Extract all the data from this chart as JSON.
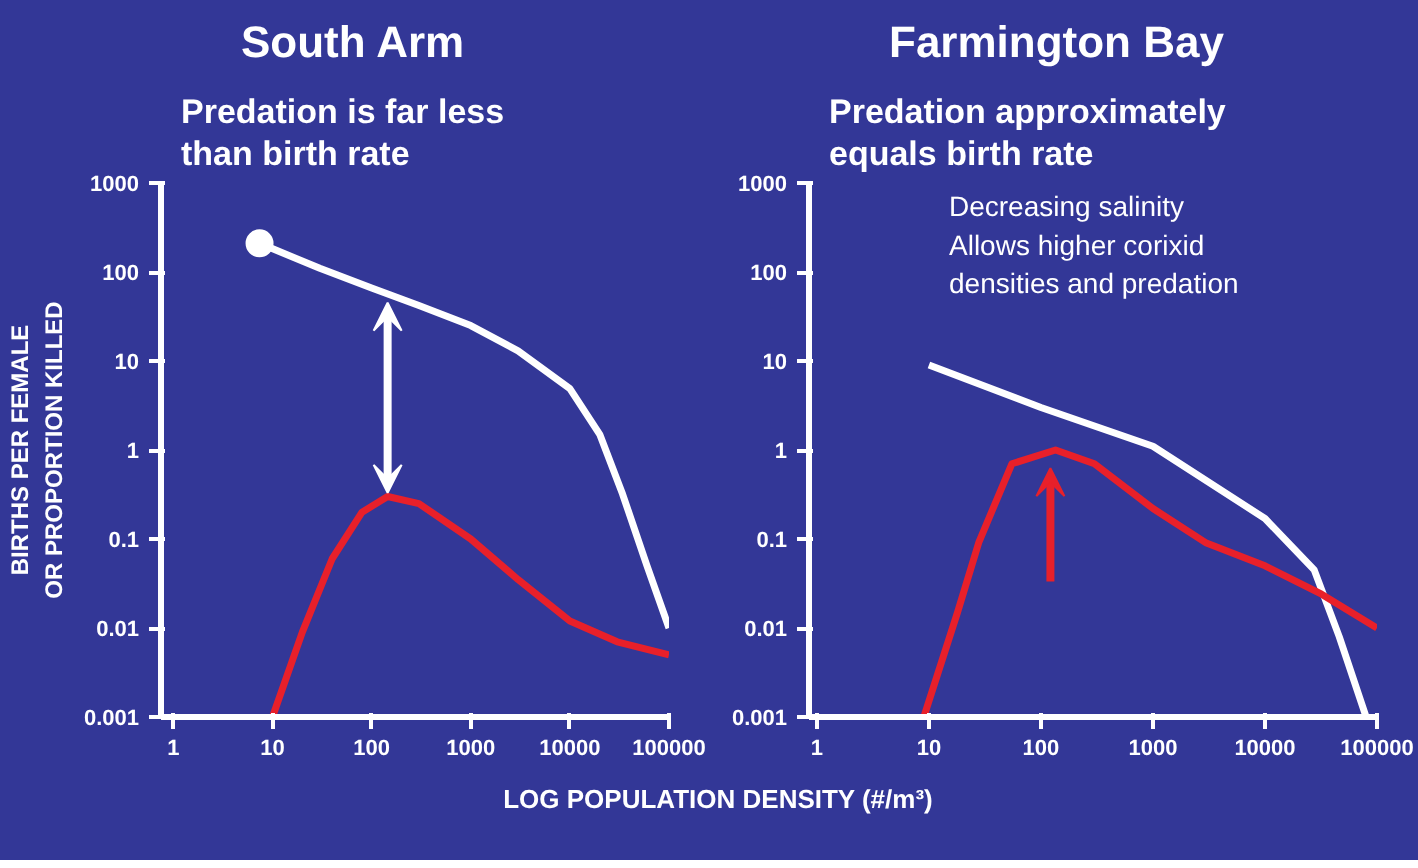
{
  "chart_data": [
    {
      "type": "line",
      "title": "South Arm",
      "subtitle": "Predation is far less than birth rate",
      "ylabel": "BIRTHS PER FEMALE\nOR PROPORTION KILLED",
      "xlabel": "LOG POPULATION DENSITY (#/m³)",
      "log": "xy",
      "xlim": [
        0.75,
        100000
      ],
      "ylim": [
        0.001,
        1000
      ],
      "xticks": [
        1,
        10,
        100,
        1000,
        10000,
        100000
      ],
      "yticks": [
        0.001,
        0.01,
        0.1,
        1,
        10,
        100,
        1000
      ],
      "grid": false,
      "line_style": "solid",
      "series": [
        {
          "color": "#ffffff",
          "x": [
            7.4,
            30,
            100,
            300,
            1000,
            3000,
            10000,
            20000,
            34000,
            60000,
            100000
          ],
          "values": [
            210,
            110,
            66,
            42,
            25,
            13,
            4.9,
            1.5,
            0.32,
            0.05,
            0.01
          ]
        },
        {
          "type": "scatter",
          "marker": "circle",
          "color": "#ffffff",
          "x": [
            7.4
          ],
          "values": [
            210
          ]
        },
        {
          "color": "#e8202a",
          "x": [
            10,
            20,
            40,
            80,
            145,
            300,
            1000,
            3000,
            10000,
            30000,
            100000
          ],
          "values": [
            0.001,
            0.009,
            0.06,
            0.2,
            0.3,
            0.25,
            0.1,
            0.035,
            0.012,
            0.007,
            0.005
          ]
        }
      ]
    },
    {
      "type": "line",
      "title": "Farmington Bay",
      "subtitle": "Predation approximately equals birth rate",
      "annotations": [
        "Decreasing salinity Allows higher corixid densities and predation"
      ],
      "log": "xy",
      "xlim": [
        0.85,
        100000
      ],
      "ylim": [
        0.001,
        1000
      ],
      "xticks": [
        1,
        10,
        100,
        1000,
        10000,
        100000
      ],
      "yticks": [
        0.001,
        0.01,
        0.1,
        1,
        10,
        100,
        1000
      ],
      "grid": false,
      "line_style": "solid",
      "series": [
        {
          "color": "#ffffff",
          "x": [
            10,
            100,
            1000,
            10000,
            27500,
            46000,
            80000
          ],
          "values": [
            9,
            3,
            1.1,
            0.17,
            0.045,
            0.008,
            0.001
          ]
        },
        {
          "color": "#e8202a",
          "x": [
            9,
            18,
            28,
            55,
            135,
            300,
            1000,
            3000,
            10000,
            32000,
            100000
          ],
          "values": [
            0.001,
            0.015,
            0.093,
            0.7,
            1.0,
            0.7,
            0.22,
            0.09,
            0.05,
            0.024,
            0.01
          ]
        }
      ]
    }
  ]
}
